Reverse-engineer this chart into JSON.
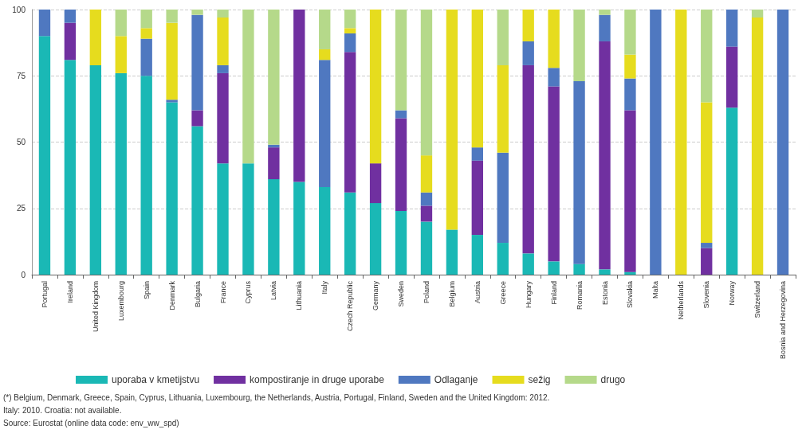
{
  "chart_data": {
    "type": "bar",
    "stacked": true,
    "categories": [
      "Portugal",
      "Ireland",
      "United Kingdom",
      "Luxembourg",
      "Spain",
      "Denmark",
      "Bulgaria",
      "France",
      "Cyprus",
      "Latvia",
      "Lithuania",
      "Italy",
      "Czech Republic",
      "Germany",
      "Sweden",
      "Poland",
      "Belgium",
      "Austria",
      "Greece",
      "Hungary",
      "Finland",
      "Romania",
      "Estonia",
      "Slovakia",
      "Malta",
      "Netherlands",
      "Slovenia",
      "Norway",
      "Switzerland",
      "Bosnia and Herzegovina"
    ],
    "series": [
      {
        "name": "uporaba v kmetijstvu",
        "color": "#1ab8b5",
        "values": [
          90,
          81,
          79,
          76,
          75,
          65,
          56,
          42,
          42,
          36,
          35,
          33,
          31,
          27,
          24,
          20,
          17,
          15,
          12,
          8,
          5,
          4,
          2,
          1,
          0,
          0,
          0,
          63,
          0,
          0
        ]
      },
      {
        "name": "kompostiranje in druge uporabe",
        "color": "#7030a0",
        "values": [
          0,
          14,
          0,
          0,
          0,
          0,
          6,
          34,
          0,
          12,
          65,
          0,
          53,
          15,
          35,
          6,
          0,
          28,
          0,
          71,
          66,
          0,
          86,
          61,
          0,
          0,
          10,
          23,
          0,
          0
        ]
      },
      {
        "name": "Odlaganje",
        "color": "#4f78c0",
        "values": [
          10,
          5,
          0,
          0,
          14,
          1,
          36,
          3,
          0,
          1,
          0,
          48,
          7,
          0,
          3,
          5,
          0,
          5,
          34,
          9,
          7,
          69,
          10,
          12,
          100,
          0,
          2,
          14,
          0,
          100
        ]
      },
      {
        "name": "sežig",
        "color": "#e6dc1e",
        "values": [
          0,
          0,
          21,
          14,
          4,
          29,
          0,
          18,
          0,
          0,
          0,
          4,
          2,
          58,
          0,
          14,
          83,
          52,
          33,
          12,
          22,
          0,
          0,
          9,
          0,
          100,
          53,
          0,
          97,
          0
        ]
      },
      {
        "name": "drugo",
        "color": "#b5d98a",
        "values": [
          0,
          0,
          0,
          10,
          7,
          5,
          2,
          3,
          58,
          51,
          0,
          15,
          7,
          0,
          38,
          55,
          0,
          0,
          21,
          0,
          0,
          27,
          2,
          17,
          0,
          0,
          35,
          0,
          3,
          0
        ]
      }
    ],
    "ylim": [
      0,
      100
    ],
    "yticks": [
      0,
      25,
      50,
      75,
      100
    ],
    "grid": "y",
    "legend": "bottom",
    "annotations": [
      "(*) Belgium, Denmark, Greece, Spain, Cyprus, Lithuania, Luxembourg, the Netherlands, Austria, Portugal, Finland, Sweden and the United Kingdom: 2012.",
      "Italy: 2010. Croatia: not available.",
      "Source: Eurostat (online data code: env_ww_spd)"
    ]
  }
}
